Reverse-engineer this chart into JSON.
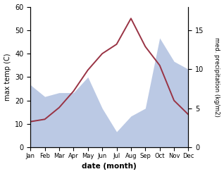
{
  "months": [
    "Jan",
    "Feb",
    "Mar",
    "Apr",
    "May",
    "Jun",
    "Jul",
    "Aug",
    "Sep",
    "Oct",
    "Nov",
    "Dec"
  ],
  "month_indices": [
    0,
    1,
    2,
    3,
    4,
    5,
    6,
    7,
    8,
    9,
    10,
    11
  ],
  "temp_max": [
    11,
    12,
    17,
    24,
    33,
    40,
    44,
    55,
    43,
    35,
    20,
    14
  ],
  "precip_raw": [
    8.0,
    6.5,
    7.0,
    7.0,
    9.0,
    5.0,
    2.0,
    4.0,
    5.0,
    14.0,
    11.0,
    10.0
  ],
  "temp_color": "#993344",
  "area_color": "#b0c0e0",
  "ylabel_left": "max temp (C)",
  "ylabel_right": "med. precipitation (kg/m2)",
  "xlabel": "date (month)",
  "ylim_left": [
    0,
    60
  ],
  "ylim_right": [
    0,
    18
  ],
  "yticks_left": [
    0,
    10,
    20,
    30,
    40,
    50,
    60
  ],
  "yticks_right": [
    0,
    5,
    10,
    15
  ],
  "background_color": "#ffffff"
}
